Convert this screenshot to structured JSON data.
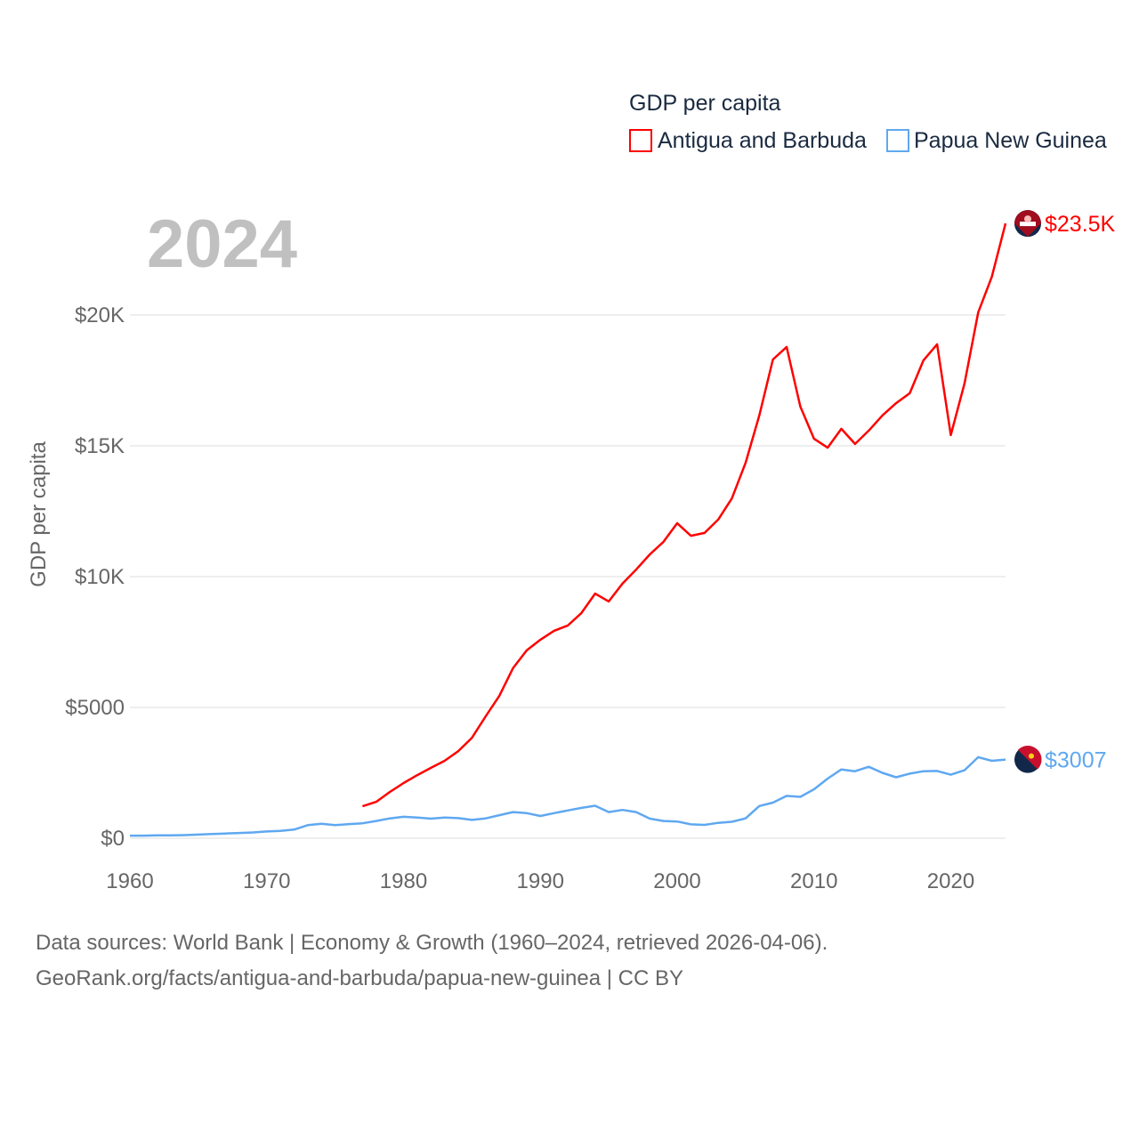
{
  "chart_data": {
    "type": "line",
    "year_label": "2024",
    "legend_title": "GDP per capita",
    "ylabel": "GDP per capita",
    "xlim": [
      1960,
      2024
    ],
    "ylim": [
      0,
      23500
    ],
    "yticks": [
      0,
      5000,
      10000,
      15000,
      20000
    ],
    "ytick_labels": [
      "$0",
      "$5000",
      "$10K",
      "$15K",
      "$20K"
    ],
    "xticks": [
      1960,
      1970,
      1980,
      1990,
      2000,
      2010,
      2020
    ],
    "xtick_labels": [
      "1960",
      "1970",
      "1980",
      "1990",
      "2000",
      "2010",
      "2020"
    ],
    "grid": true,
    "legend_placement": "top-right",
    "series": [
      {
        "name": "Antigua and Barbuda",
        "color": "#ff0000",
        "end_label": "$23.5K",
        "start_year": 1977,
        "values": [
          1220,
          1390,
          1770,
          2110,
          2410,
          2690,
          2960,
          3330,
          3840,
          4660,
          5440,
          6500,
          7180,
          7590,
          7930,
          8130,
          8610,
          9350,
          9050,
          9730,
          10270,
          10850,
          11330,
          12040,
          11560,
          11670,
          12180,
          12990,
          14350,
          16160,
          18300,
          18780,
          16500,
          15270,
          14930,
          15650,
          15070,
          15580,
          16160,
          16630,
          17010,
          18270,
          18880,
          15410,
          17380,
          20100,
          21460,
          23500
        ]
      },
      {
        "name": "Papua New Guinea",
        "color": "#5fa8f0",
        "end_label": "$3007",
        "start_year": 1960,
        "values": [
          100,
          100,
          110,
          110,
          120,
          140,
          160,
          180,
          200,
          220,
          260,
          280,
          330,
          500,
          550,
          500,
          540,
          570,
          660,
          760,
          820,
          790,
          750,
          790,
          770,
          700,
          760,
          880,
          1000,
          960,
          850,
          960,
          1060,
          1160,
          1240,
          1000,
          1080,
          1000,
          750,
          660,
          640,
          530,
          510,
          590,
          630,
          760,
          1230,
          1360,
          1620,
          1580,
          1870,
          2280,
          2630,
          2560,
          2730,
          2500,
          2330,
          2470,
          2560,
          2570,
          2430,
          2600,
          3100,
          2960,
          3007
        ]
      }
    ]
  },
  "footer": {
    "line1": "Data sources: World Bank | Economy & Growth (1960–2024, retrieved 2026-04-06).",
    "line2": "GeoRank.org/facts/antigua-and-barbuda/papua-new-guinea | CC BY"
  }
}
